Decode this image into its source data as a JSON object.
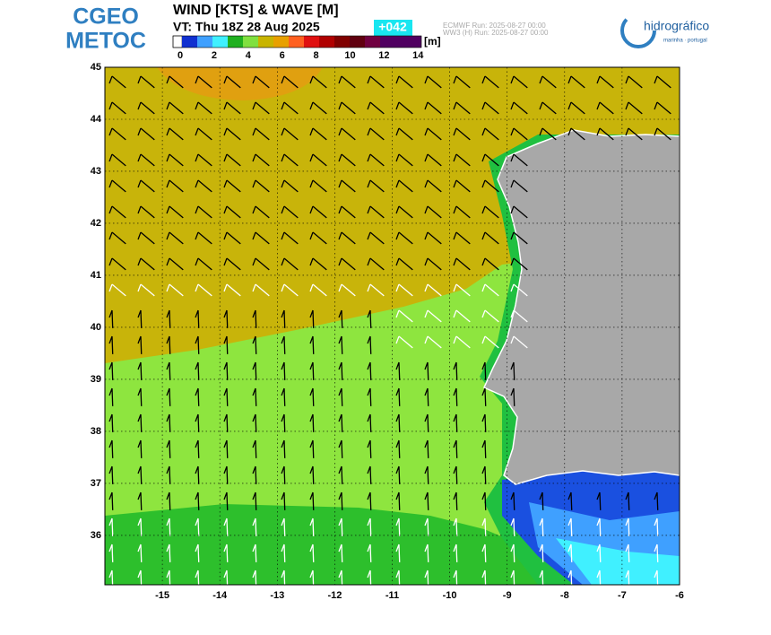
{
  "header": {
    "logo_top": "CGEO",
    "logo_bottom": "METOC",
    "title": "WIND [KTS] & WAVE [M]",
    "valid_time": "VT: Thu 18Z 28 Aug 2025",
    "forecast_hour": "+042",
    "run_1": "ECMWF    Run: 2025-08-27 00:00",
    "run_2": "WW3 (H) Run: 2025-08-27 00:00",
    "org_name": "hidrográfico",
    "org_sub": "marinha · portugal"
  },
  "colorbar": {
    "unit": "[m]",
    "labels": [
      0,
      2,
      4,
      6,
      8,
      10,
      12,
      14
    ]
  },
  "map": {
    "lon_range": [
      -16,
      -6
    ],
    "lat_range": [
      35.05,
      45
    ],
    "lon_ticks": [
      -15,
      -14,
      -13,
      -12,
      -11,
      -10,
      -9,
      -8,
      -7,
      -6
    ],
    "lat_ticks": [
      36,
      37,
      38,
      39,
      40,
      41,
      42,
      43,
      44,
      45
    ]
  }
}
